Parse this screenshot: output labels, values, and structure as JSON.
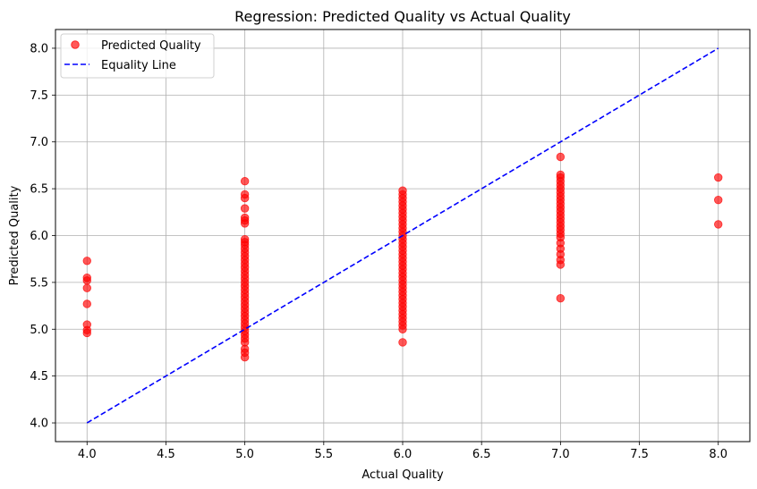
{
  "chart_data": {
    "type": "scatter",
    "title": "Regression: Predicted Quality vs Actual Quality",
    "xlabel": "Actual Quality",
    "ylabel": "Predicted Quality",
    "xlim": [
      3.8,
      8.2
    ],
    "ylim": [
      3.8,
      8.2
    ],
    "xticks": [
      "4.0",
      "4.5",
      "5.0",
      "5.5",
      "6.0",
      "6.5",
      "7.0",
      "7.5",
      "8.0"
    ],
    "yticks": [
      "4.0",
      "4.5",
      "5.0",
      "5.5",
      "6.0",
      "6.5",
      "7.0",
      "7.5",
      "8.0"
    ],
    "grid": true,
    "legend_position": "top-left",
    "series": [
      {
        "name": "Predicted Quality",
        "kind": "scatter",
        "color": "#ff0000",
        "points": [
          [
            4.0,
            5.73
          ],
          [
            4.0,
            5.55
          ],
          [
            4.0,
            5.52
          ],
          [
            4.0,
            5.44
          ],
          [
            4.0,
            5.27
          ],
          [
            4.0,
            5.05
          ],
          [
            4.0,
            4.99
          ],
          [
            4.0,
            4.96
          ],
          [
            5.0,
            6.58
          ],
          [
            5.0,
            6.44
          ],
          [
            5.0,
            6.4
          ],
          [
            5.0,
            6.29
          ],
          [
            5.0,
            6.19
          ],
          [
            5.0,
            6.16
          ],
          [
            5.0,
            6.13
          ],
          [
            5.0,
            5.96
          ],
          [
            5.0,
            5.93
          ],
          [
            5.0,
            5.9
          ],
          [
            5.0,
            5.86
          ],
          [
            5.0,
            5.82
          ],
          [
            5.0,
            5.78
          ],
          [
            5.0,
            5.74
          ],
          [
            5.0,
            5.7
          ],
          [
            5.0,
            5.66
          ],
          [
            5.0,
            5.62
          ],
          [
            5.0,
            5.58
          ],
          [
            5.0,
            5.54
          ],
          [
            5.0,
            5.5
          ],
          [
            5.0,
            5.46
          ],
          [
            5.0,
            5.42
          ],
          [
            5.0,
            5.38
          ],
          [
            5.0,
            5.34
          ],
          [
            5.0,
            5.3
          ],
          [
            5.0,
            5.26
          ],
          [
            5.0,
            5.22
          ],
          [
            5.0,
            5.18
          ],
          [
            5.0,
            5.14
          ],
          [
            5.0,
            5.1
          ],
          [
            5.0,
            5.06
          ],
          [
            5.0,
            5.02
          ],
          [
            5.0,
            4.98
          ],
          [
            5.0,
            4.94
          ],
          [
            5.0,
            4.9
          ],
          [
            5.0,
            4.86
          ],
          [
            5.0,
            4.79
          ],
          [
            5.0,
            4.75
          ],
          [
            5.0,
            4.7
          ],
          [
            6.0,
            6.48
          ],
          [
            6.0,
            6.44
          ],
          [
            6.0,
            6.4
          ],
          [
            6.0,
            6.36
          ],
          [
            6.0,
            6.32
          ],
          [
            6.0,
            6.28
          ],
          [
            6.0,
            6.24
          ],
          [
            6.0,
            6.2
          ],
          [
            6.0,
            6.16
          ],
          [
            6.0,
            6.12
          ],
          [
            6.0,
            6.08
          ],
          [
            6.0,
            6.04
          ],
          [
            6.0,
            6.0
          ],
          [
            6.0,
            5.96
          ],
          [
            6.0,
            5.92
          ],
          [
            6.0,
            5.88
          ],
          [
            6.0,
            5.84
          ],
          [
            6.0,
            5.8
          ],
          [
            6.0,
            5.76
          ],
          [
            6.0,
            5.72
          ],
          [
            6.0,
            5.68
          ],
          [
            6.0,
            5.64
          ],
          [
            6.0,
            5.6
          ],
          [
            6.0,
            5.56
          ],
          [
            6.0,
            5.52
          ],
          [
            6.0,
            5.48
          ],
          [
            6.0,
            5.44
          ],
          [
            6.0,
            5.4
          ],
          [
            6.0,
            5.36
          ],
          [
            6.0,
            5.32
          ],
          [
            6.0,
            5.28
          ],
          [
            6.0,
            5.24
          ],
          [
            6.0,
            5.2
          ],
          [
            6.0,
            5.16
          ],
          [
            6.0,
            5.12
          ],
          [
            6.0,
            5.08
          ],
          [
            6.0,
            5.04
          ],
          [
            6.0,
            5.0
          ],
          [
            6.0,
            4.86
          ],
          [
            7.0,
            6.84
          ],
          [
            7.0,
            6.65
          ],
          [
            7.0,
            6.62
          ],
          [
            7.0,
            6.58
          ],
          [
            7.0,
            6.54
          ],
          [
            7.0,
            6.5
          ],
          [
            7.0,
            6.46
          ],
          [
            7.0,
            6.42
          ],
          [
            7.0,
            6.38
          ],
          [
            7.0,
            6.34
          ],
          [
            7.0,
            6.3
          ],
          [
            7.0,
            6.26
          ],
          [
            7.0,
            6.22
          ],
          [
            7.0,
            6.18
          ],
          [
            7.0,
            6.14
          ],
          [
            7.0,
            6.1
          ],
          [
            7.0,
            6.06
          ],
          [
            7.0,
            6.02
          ],
          [
            7.0,
            5.98
          ],
          [
            7.0,
            5.92
          ],
          [
            7.0,
            5.86
          ],
          [
            7.0,
            5.8
          ],
          [
            7.0,
            5.74
          ],
          [
            7.0,
            5.69
          ],
          [
            7.0,
            5.33
          ],
          [
            8.0,
            6.62
          ],
          [
            8.0,
            6.38
          ],
          [
            8.0,
            6.12
          ]
        ]
      },
      {
        "name": "Equality Line",
        "kind": "line",
        "style": "dashed",
        "color": "#0000ff",
        "points": [
          [
            4.0,
            4.0
          ],
          [
            8.0,
            8.0
          ]
        ]
      }
    ]
  },
  "colors": {
    "background": "#ffffff",
    "grid": "#b0b0b0",
    "axes": "#000000"
  }
}
